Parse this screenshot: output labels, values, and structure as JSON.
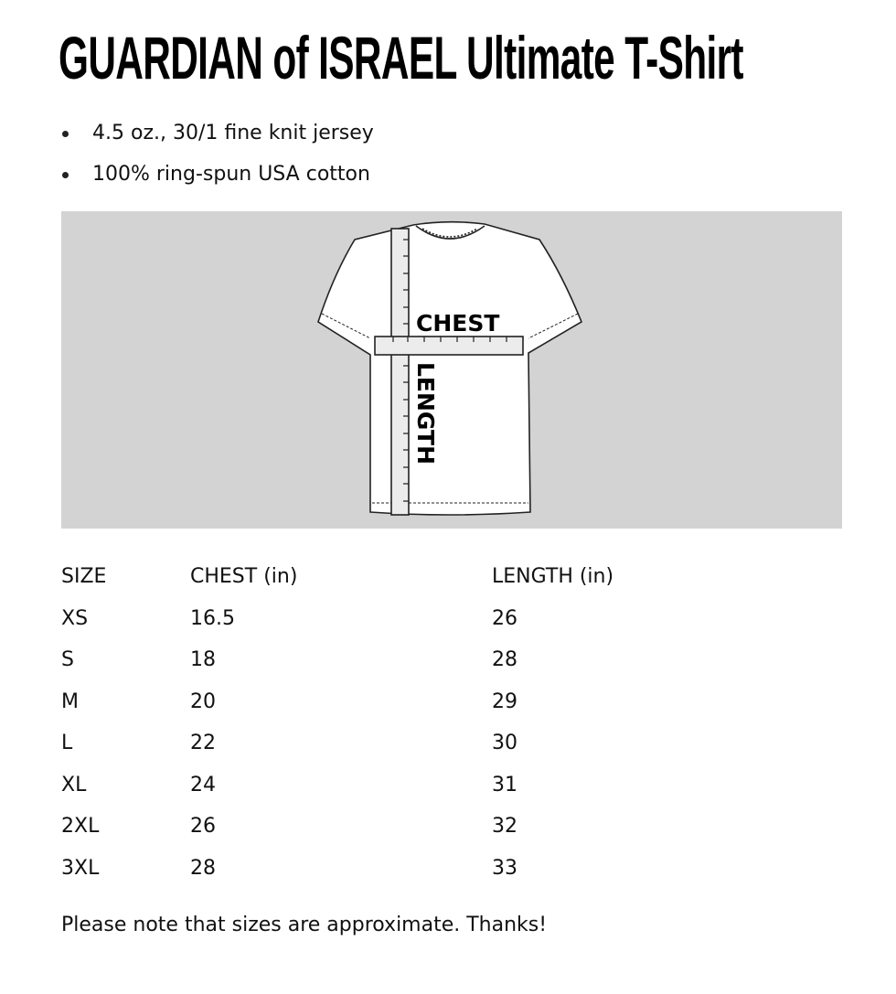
{
  "title": "GUARDIAN of ISRAEL Ultimate T-Shirt",
  "features": [
    "4.5 oz., 30/1 fine knit jersey",
    "100% ring-spun USA cotton"
  ],
  "diagram": {
    "chest_label": "CHEST",
    "length_label": "LENGTH",
    "background": "#d3d3d3"
  },
  "size_table": {
    "headers": [
      "SIZE",
      "CHEST (in)",
      "LENGTH (in)"
    ],
    "rows": [
      [
        "XS",
        "16.5",
        "26"
      ],
      [
        "S",
        "18",
        "28"
      ],
      [
        "M",
        "20",
        "29"
      ],
      [
        "L",
        "22",
        "30"
      ],
      [
        "XL",
        "24",
        "31"
      ],
      [
        "2XL",
        "26",
        "32"
      ],
      [
        "3XL",
        "28",
        "33"
      ]
    ]
  },
  "note": "Please note that sizes are approximate. Thanks!"
}
